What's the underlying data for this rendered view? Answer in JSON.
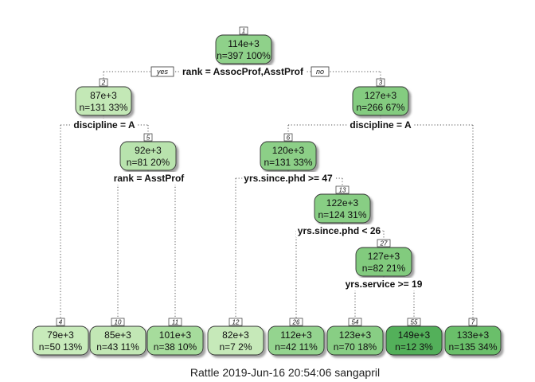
{
  "caption": "Rattle 2019-Jun-16 20:54:06 sangapril",
  "branch_labels": {
    "yes": "yes",
    "no": "no"
  },
  "nodes": [
    {
      "id": "1",
      "value": "114e+3",
      "stats": "n=397  100%",
      "fill": "#8fd18a"
    },
    {
      "id": "2",
      "value": "87e+3",
      "stats": "n=131  33%",
      "fill": "#c3e8b6"
    },
    {
      "id": "3",
      "value": "127e+3",
      "stats": "n=266  67%",
      "fill": "#84cc80"
    },
    {
      "id": "5",
      "value": "92e+3",
      "stats": "n=81  20%",
      "fill": "#b8e3ad"
    },
    {
      "id": "6",
      "value": "120e+3",
      "stats": "n=131  33%",
      "fill": "#8ccf87"
    },
    {
      "id": "13",
      "value": "122e+3",
      "stats": "n=124  31%",
      "fill": "#88ce84"
    },
    {
      "id": "27",
      "value": "127e+3",
      "stats": "n=82  21%",
      "fill": "#82cb7e"
    },
    {
      "id": "4",
      "value": "79e+3",
      "stats": "n=50  13%",
      "fill": "#c8ebbb"
    },
    {
      "id": "10",
      "value": "85e+3",
      "stats": "n=43  11%",
      "fill": "#c2e7b5"
    },
    {
      "id": "11",
      "value": "101e+3",
      "stats": "n=38  10%",
      "fill": "#a6dc9c"
    },
    {
      "id": "12",
      "value": "82e+3",
      "stats": "n=7  2%",
      "fill": "#c6e9b9"
    },
    {
      "id": "26",
      "value": "112e+3",
      "stats": "n=42  11%",
      "fill": "#94d48f"
    },
    {
      "id": "54",
      "value": "123e+3",
      "stats": "n=70  18%",
      "fill": "#88ce84"
    },
    {
      "id": "55",
      "value": "149e+3",
      "stats": "n=12  3%",
      "fill": "#52b05a"
    },
    {
      "id": "7",
      "value": "133e+3",
      "stats": "n=135  34%",
      "fill": "#6bbf6a"
    }
  ],
  "splits": [
    {
      "node": "1",
      "label": "rank = AssocProf,AsstProf"
    },
    {
      "node": "2",
      "label": "discipline = A"
    },
    {
      "node": "3",
      "label": "discipline = A"
    },
    {
      "node": "5",
      "label": "rank = AsstProf"
    },
    {
      "node": "6",
      "label": "yrs.since.phd >= 47"
    },
    {
      "node": "13",
      "label": "yrs.since.phd < 26"
    },
    {
      "node": "27",
      "label": "yrs.service >= 19"
    }
  ]
}
